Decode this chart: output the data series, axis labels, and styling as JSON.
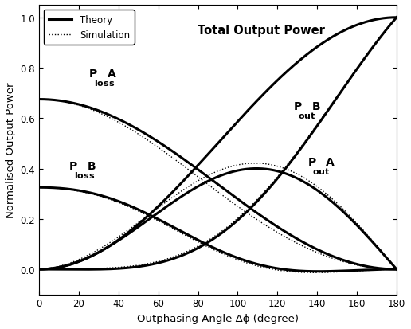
{
  "title": "Total Output Power",
  "xlabel": "Outphasing Angle Δϕ (degree)",
  "ylabel": "Normalised Output Power",
  "xlim": [
    0,
    180
  ],
  "ylim": [
    -0.1,
    1.05
  ],
  "xticks": [
    0,
    20,
    40,
    60,
    80,
    100,
    120,
    140,
    160,
    180
  ],
  "yticks": [
    0.0,
    0.2,
    0.4,
    0.6,
    0.8,
    1.0
  ],
  "legend_theory": "Theory",
  "legend_sim": "Simulation",
  "figsize": [
    5.16,
    4.14
  ],
  "dpi": 100
}
